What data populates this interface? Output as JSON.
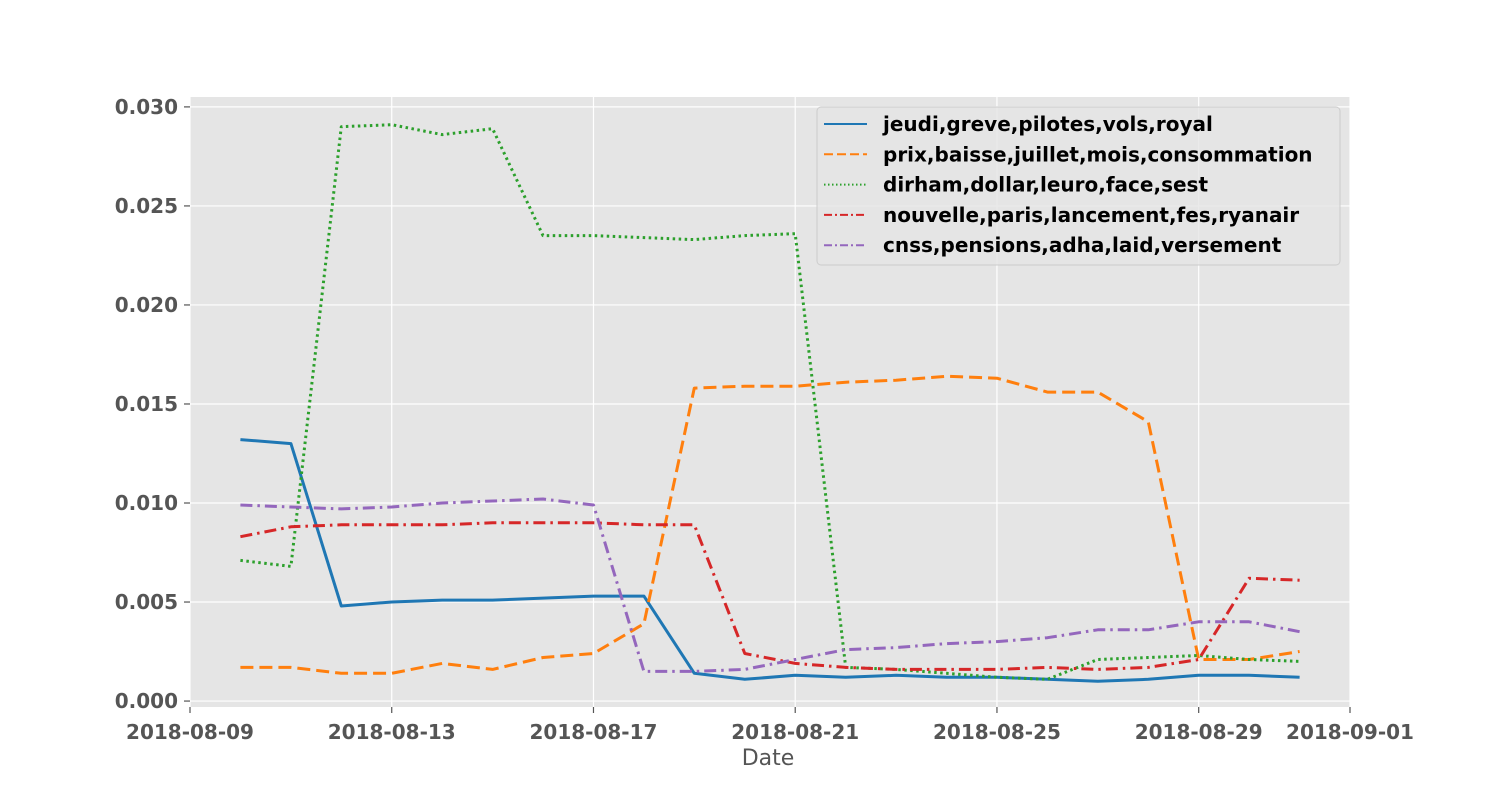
{
  "chart_data": {
    "type": "line",
    "title": "",
    "xlabel": "Date",
    "ylabel": "",
    "xlim": [
      "2018-08-09",
      "2018-09-01"
    ],
    "ylim": [
      -0.0003,
      0.0305
    ],
    "grid": true,
    "legend_position": "top-right",
    "x_ticks": [
      "2018-08-09",
      "2018-08-13",
      "2018-08-17",
      "2018-08-21",
      "2018-08-25",
      "2018-08-29",
      "2018-09-01"
    ],
    "y_ticks": [
      "0.000",
      "0.005",
      "0.010",
      "0.015",
      "0.020",
      "0.025",
      "0.030"
    ],
    "x": [
      "2018-08-10",
      "2018-08-11",
      "2018-08-12",
      "2018-08-13",
      "2018-08-14",
      "2018-08-15",
      "2018-08-16",
      "2018-08-17",
      "2018-08-18",
      "2018-08-19",
      "2018-08-20",
      "2018-08-21",
      "2018-08-22",
      "2018-08-23",
      "2018-08-24",
      "2018-08-25",
      "2018-08-26",
      "2018-08-27",
      "2018-08-28",
      "2018-08-29",
      "2018-08-30",
      "2018-08-31"
    ],
    "series": [
      {
        "name": "jeudi,greve,pilotes,vols,royal",
        "color": "#1f77b4",
        "style": "solid",
        "values": [
          0.0132,
          0.013,
          0.0048,
          0.005,
          0.0051,
          0.0051,
          0.0052,
          0.0053,
          0.0053,
          0.0014,
          0.0011,
          0.0013,
          0.0012,
          0.0013,
          0.0012,
          0.0012,
          0.0011,
          0.001,
          0.0011,
          0.0013,
          0.0013,
          0.0012
        ]
      },
      {
        "name": "prix,baisse,juillet,mois,consommation",
        "color": "#ff7f0e",
        "style": "dashed",
        "values": [
          0.0017,
          0.0017,
          0.0014,
          0.0014,
          0.0019,
          0.0016,
          0.0022,
          0.0024,
          0.0039,
          0.0158,
          0.0159,
          0.0159,
          0.0161,
          0.0162,
          0.0164,
          0.0163,
          0.0156,
          0.0156,
          0.0141,
          0.0021,
          0.0021,
          0.0025
        ]
      },
      {
        "name": "dirham,dollar,leuro,face,sest",
        "color": "#2ca02c",
        "style": "dotted",
        "values": [
          0.0071,
          0.0068,
          0.029,
          0.0291,
          0.0286,
          0.0289,
          0.0235,
          0.0235,
          0.0234,
          0.0233,
          0.0235,
          0.0236,
          0.0017,
          0.0016,
          0.0014,
          0.0012,
          0.0011,
          0.0021,
          0.0022,
          0.0023,
          0.0021,
          0.002
        ]
      },
      {
        "name": "nouvelle,paris,lancement,fes,ryanair",
        "color": "#d62728",
        "style": "dashdot",
        "values": [
          0.0083,
          0.0088,
          0.0089,
          0.0089,
          0.0089,
          0.009,
          0.009,
          0.009,
          0.0089,
          0.0089,
          0.0024,
          0.0019,
          0.0017,
          0.0016,
          0.0016,
          0.0016,
          0.0017,
          0.0016,
          0.0017,
          0.0021,
          0.0062,
          0.0061
        ]
      },
      {
        "name": "cnss,pensions,adha,laid,versement",
        "color": "#9467bd",
        "style": "dashdot",
        "values": [
          0.0099,
          0.0098,
          0.0097,
          0.0098,
          0.01,
          0.0101,
          0.0102,
          0.0099,
          0.0015,
          0.0015,
          0.0016,
          0.0021,
          0.0026,
          0.0027,
          0.0029,
          0.003,
          0.0032,
          0.0036,
          0.0036,
          0.004,
          0.004,
          0.0035
        ]
      }
    ]
  }
}
